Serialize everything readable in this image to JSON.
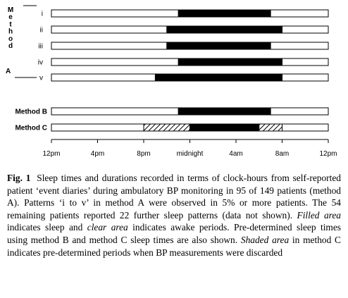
{
  "chart_data": {
    "type": "gantt",
    "x_axis": {
      "range_hours": [
        12,
        36
      ],
      "ticks": [
        {
          "hour": 12,
          "label": "12pm"
        },
        {
          "hour": 16,
          "label": "4pm"
        },
        {
          "hour": 20,
          "label": "8pm"
        },
        {
          "hour": 24,
          "label": "midnight"
        },
        {
          "hour": 28,
          "label": "4am"
        },
        {
          "hour": 32,
          "label": "8am"
        },
        {
          "hour": 36,
          "label": "12pm"
        }
      ]
    },
    "group_label": {
      "letters": [
        "M",
        "e",
        "t",
        "h",
        "o",
        "d"
      ],
      "tag": "A"
    },
    "rows": [
      {
        "label": "i",
        "segments": [
          {
            "kind": "filled",
            "start": 23.0,
            "end": 31.0
          }
        ]
      },
      {
        "label": "ii",
        "segments": [
          {
            "kind": "filled",
            "start": 22.0,
            "end": 32.0
          }
        ]
      },
      {
        "label": "iii",
        "segments": [
          {
            "kind": "filled",
            "start": 22.0,
            "end": 31.0
          }
        ]
      },
      {
        "label": "iv",
        "segments": [
          {
            "kind": "filled",
            "start": 23.0,
            "end": 32.0
          }
        ]
      },
      {
        "label": "v",
        "segments": [
          {
            "kind": "filled",
            "start": 21.0,
            "end": 32.0
          }
        ]
      },
      {
        "label": "Method B",
        "segments": [
          {
            "kind": "filled",
            "start": 23.0,
            "end": 31.0
          }
        ]
      },
      {
        "label": "Method C",
        "segments": [
          {
            "kind": "shaded",
            "start": 20.0,
            "end": 24.0
          },
          {
            "kind": "filled",
            "start": 24.0,
            "end": 30.0
          },
          {
            "kind": "shaded",
            "start": 30.0,
            "end": 32.0
          }
        ]
      }
    ],
    "legend": {
      "filled": "sleep",
      "clear": "awake",
      "shaded": "discarded"
    }
  },
  "caption": {
    "fig": "Fig. 1",
    "p1": " Sleep times and durations recorded in terms of clock-hours from self-reported patient ‘event diaries’ during ambulatory BP monitoring in 95 of 149 patients (method A). Patterns ‘i to v’ in method A were observed in 5% or more patients. The 54 remaining patients reported 22 further sleep patterns (data not shown). ",
    "filled": "Filled area",
    "p2": " indicates sleep and ",
    "clear": "clear area",
    "p3": " indicates awake periods. Pre-determined sleep times using method B and method C sleep times are also shown. ",
    "shaded": "Shaded area",
    "p4": " in method C indicates pre-determined periods when BP measurements were discarded"
  }
}
